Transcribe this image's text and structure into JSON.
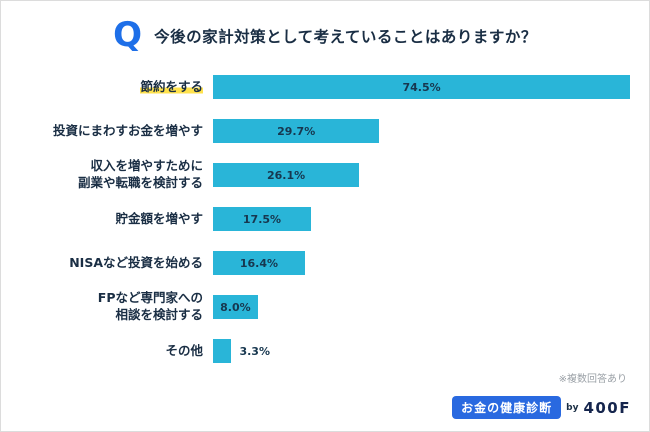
{
  "header": {
    "q_icon": "Q",
    "title": "今後の家計対策として考えていることはありますか？"
  },
  "chart_data": {
    "type": "bar",
    "orientation": "horizontal",
    "title": "今後の家計対策として考えていることはありますか？",
    "categories": [
      "節約をする",
      "投資にまわすお金を増やす",
      "収入を増やすために\n副業や転職を検討する",
      "貯金額を増やす",
      "NISAなど投資を始める",
      "FPなど専門家への\n相談を検討する",
      "その他"
    ],
    "values": [
      74.5,
      29.7,
      26.1,
      17.5,
      16.4,
      8.0,
      3.3
    ],
    "value_labels": [
      "74.5%",
      "29.7%",
      "26.1%",
      "17.5%",
      "16.4%",
      "8.0%",
      "3.3%"
    ],
    "xlim": [
      0,
      75
    ],
    "grid": false,
    "legend": false,
    "bar_color": "#29B5D8",
    "highlight_category_index": 0,
    "highlight_color": "#FFE24D"
  },
  "footer": {
    "note": "※複数回答あり",
    "logo_text": "お金の健康診断",
    "logo_by": "by",
    "logo_brand": "400F"
  },
  "colors": {
    "accent_blue": "#1E6FE8",
    "bar_cyan": "#29B5D8",
    "text_navy": "#1A2E44",
    "logo_blue": "#2969E0",
    "note_gray": "#9aa0a6"
  }
}
